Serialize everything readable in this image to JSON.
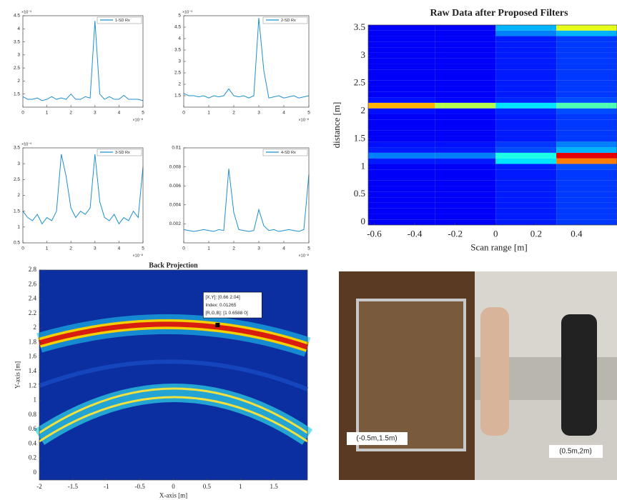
{
  "chart_data": [
    {
      "type": "line",
      "y_multiplier": "×10⁻⁶",
      "x_multiplier": "×10⁻⁸",
      "x": [
        0,
        0.2,
        0.4,
        0.6,
        0.8,
        1,
        1.2,
        1.4,
        1.6,
        1.8,
        2,
        2.2,
        2.4,
        2.6,
        2.8,
        3,
        3.2,
        3.4,
        3.6,
        3.8,
        4,
        4.2,
        4.4,
        4.6,
        4.8,
        5
      ],
      "series": [
        {
          "name": "1-SD Rx",
          "color": "#1f8fd0",
          "values": [
            1.4,
            1.3,
            1.3,
            1.35,
            1.25,
            1.3,
            1.4,
            1.3,
            1.35,
            1.3,
            1.5,
            1.3,
            1.3,
            1.4,
            1.35,
            4.3,
            1.5,
            1.3,
            1.4,
            1.3,
            1.3,
            1.45,
            1.3,
            1.3,
            1.3,
            1.25
          ]
        }
      ],
      "xlim": [
        0,
        5
      ],
      "xticks": [
        0,
        1,
        2,
        3,
        4,
        5
      ],
      "ylim": [
        1,
        4.5
      ],
      "yticks": [
        1.5,
        2,
        2.5,
        3,
        3.5,
        4,
        4.5
      ]
    },
    {
      "type": "line",
      "y_multiplier": "×10⁻⁶",
      "x_multiplier": "×10⁻⁸",
      "x": [
        0,
        0.2,
        0.4,
        0.6,
        0.8,
        1,
        1.2,
        1.4,
        1.6,
        1.8,
        2,
        2.2,
        2.4,
        2.6,
        2.8,
        3,
        3.2,
        3.4,
        3.6,
        3.8,
        4,
        4.2,
        4.4,
        4.6,
        4.8,
        5
      ],
      "series": [
        {
          "name": "2-SD Rx",
          "color": "#1f8fd0",
          "values": [
            1.6,
            1.5,
            1.5,
            1.45,
            1.5,
            1.4,
            1.5,
            1.45,
            1.5,
            1.8,
            1.5,
            1.45,
            1.5,
            1.4,
            1.5,
            4.9,
            2.6,
            1.4,
            1.45,
            1.5,
            1.4,
            1.45,
            1.5,
            1.4,
            1.45,
            1.5
          ]
        }
      ],
      "xlim": [
        0,
        5
      ],
      "xticks": [
        0,
        1,
        2,
        3,
        4,
        5
      ],
      "ylim": [
        1,
        5
      ],
      "yticks": [
        1.5,
        2,
        2.5,
        3,
        3.5,
        4,
        4.5,
        5
      ]
    },
    {
      "type": "line",
      "y_multiplier": "×10⁻⁶",
      "x_multiplier": "×10⁻⁸",
      "x": [
        0,
        0.2,
        0.4,
        0.6,
        0.8,
        1,
        1.2,
        1.4,
        1.6,
        1.8,
        2,
        2.2,
        2.4,
        2.6,
        2.8,
        3,
        3.2,
        3.4,
        3.6,
        3.8,
        4,
        4.2,
        4.4,
        4.6,
        4.8,
        5
      ],
      "series": [
        {
          "name": "3-SD Rx",
          "color": "#1f8fd0",
          "values": [
            1.5,
            1.3,
            1.2,
            1.4,
            1.1,
            1.3,
            1.2,
            1.5,
            3.3,
            2.6,
            1.6,
            1.3,
            1.5,
            1.4,
            1.6,
            3.3,
            1.8,
            1.3,
            1.2,
            1.4,
            1.1,
            1.3,
            1.2,
            1.5,
            1.3,
            2.9
          ]
        }
      ],
      "xlim": [
        0,
        5
      ],
      "xticks": [
        0,
        1,
        2,
        3,
        4,
        5
      ],
      "ylim": [
        0.5,
        3.5
      ],
      "yticks": [
        0.5,
        1,
        1.5,
        2,
        2.5,
        3,
        3.5
      ]
    },
    {
      "type": "line",
      "x_multiplier": "×10⁻⁸",
      "x": [
        0,
        0.2,
        0.4,
        0.6,
        0.8,
        1,
        1.2,
        1.4,
        1.6,
        1.8,
        2,
        2.2,
        2.4,
        2.6,
        2.8,
        3,
        3.2,
        3.4,
        3.6,
        3.8,
        4,
        4.2,
        4.4,
        4.6,
        4.8,
        5
      ],
      "series": [
        {
          "name": "4-SD Rx",
          "color": "#1f8fd0",
          "values": [
            0.0014,
            0.0013,
            0.0012,
            0.0013,
            0.0014,
            0.0013,
            0.0012,
            0.0014,
            0.0013,
            0.0078,
            0.0032,
            0.0014,
            0.0013,
            0.0012,
            0.0013,
            0.0035,
            0.0018,
            0.0013,
            0.0014,
            0.0012,
            0.0013,
            0.0014,
            0.0013,
            0.0012,
            0.0014,
            0.0072
          ]
        }
      ],
      "xlim": [
        0,
        5
      ],
      "xticks": [
        0,
        1,
        2,
        3,
        4,
        5
      ],
      "ylim": [
        0,
        0.01
      ],
      "yticks": [
        0.002,
        0.004,
        0.006,
        0.008,
        0.01
      ]
    },
    {
      "type": "heatmap",
      "title": "Raw Data after Proposed Filters",
      "x_label": "Scan range [m]",
      "y_label": "distance [m]",
      "xbins": [
        -0.63,
        -0.3,
        0,
        0.3,
        0.6
      ],
      "ybins": [
        -0.05,
        0.05,
        0.15,
        0.25,
        0.35,
        0.45,
        0.55,
        0.65,
        0.75,
        0.85,
        0.95,
        1.05,
        1.15,
        1.25,
        1.35,
        1.45,
        1.55,
        1.65,
        1.75,
        1.85,
        1.95,
        2.05,
        2.15,
        2.25,
        2.35,
        2.45,
        2.55,
        2.65,
        2.75,
        2.85,
        2.95,
        3.05,
        3.15,
        3.25,
        3.35,
        3.45,
        3.55
      ],
      "values": [
        [
          0.12,
          0.12,
          0.15,
          0.18
        ],
        [
          0.12,
          0.12,
          0.15,
          0.18
        ],
        [
          0.12,
          0.12,
          0.15,
          0.18
        ],
        [
          0.12,
          0.12,
          0.15,
          0.18
        ],
        [
          0.12,
          0.12,
          0.15,
          0.18
        ],
        [
          0.12,
          0.12,
          0.15,
          0.18
        ],
        [
          0.12,
          0.12,
          0.15,
          0.18
        ],
        [
          0.12,
          0.12,
          0.15,
          0.18
        ],
        [
          0.12,
          0.12,
          0.15,
          0.18
        ],
        [
          0.12,
          0.12,
          0.15,
          0.18
        ],
        [
          0.12,
          0.12,
          0.15,
          0.2
        ],
        [
          0.15,
          0.15,
          0.35,
          0.75
        ],
        [
          0.25,
          0.25,
          0.4,
          0.9
        ],
        [
          0.15,
          0.15,
          0.2,
          0.3
        ],
        [
          0.14,
          0.14,
          0.18,
          0.25
        ],
        [
          0.12,
          0.12,
          0.15,
          0.18
        ],
        [
          0.12,
          0.12,
          0.15,
          0.18
        ],
        [
          0.12,
          0.12,
          0.15,
          0.18
        ],
        [
          0.12,
          0.12,
          0.15,
          0.18
        ],
        [
          0.12,
          0.12,
          0.15,
          0.18
        ],
        [
          0.14,
          0.13,
          0.16,
          0.2
        ],
        [
          0.7,
          0.55,
          0.35,
          0.45
        ],
        [
          0.14,
          0.13,
          0.16,
          0.2
        ],
        [
          0.12,
          0.12,
          0.15,
          0.18
        ],
        [
          0.12,
          0.12,
          0.15,
          0.18
        ],
        [
          0.12,
          0.12,
          0.15,
          0.18
        ],
        [
          0.12,
          0.12,
          0.15,
          0.18
        ],
        [
          0.12,
          0.12,
          0.15,
          0.18
        ],
        [
          0.12,
          0.12,
          0.15,
          0.18
        ],
        [
          0.12,
          0.12,
          0.15,
          0.18
        ],
        [
          0.12,
          0.12,
          0.15,
          0.18
        ],
        [
          0.12,
          0.12,
          0.15,
          0.18
        ],
        [
          0.12,
          0.12,
          0.15,
          0.18
        ],
        [
          0.12,
          0.12,
          0.15,
          0.18
        ],
        [
          0.12,
          0.12,
          0.25,
          0.3
        ],
        [
          0.12,
          0.12,
          0.3,
          0.6
        ]
      ],
      "xlim": [
        -0.63,
        0.6
      ],
      "xticks": [
        -0.6,
        -0.4,
        -0.2,
        0,
        0.2,
        0.4
      ],
      "ylim": [
        -0.05,
        3.55
      ],
      "yticks": [
        0,
        0.5,
        1,
        1.5,
        2,
        2.5,
        3,
        3.5
      ]
    },
    {
      "type": "image",
      "title": "Back Projection",
      "x_label": "X-axis [m]",
      "y_label": "Y-axis [m]",
      "marker": {
        "x": 0.66,
        "y": 2.04
      },
      "datatip": [
        "[X,Y]: [0.66 2.04]",
        "Index: 0.01265",
        "[R,G,B]: [1 0.6588 0]"
      ],
      "xlim": [
        -2,
        2
      ],
      "xticks": [
        -2,
        -1.5,
        -1,
        -0.5,
        0,
        0.5,
        1,
        1.5
      ],
      "ylim": [
        -0.1,
        2.8
      ],
      "yticks": [
        0,
        0.2,
        0.4,
        0.6,
        0.8,
        1,
        1.2,
        1.4,
        1.6,
        1.8,
        2,
        2.2,
        2.4,
        2.6,
        2.8
      ]
    }
  ],
  "photo": {
    "labels": [
      "(-0.5m,1.5m)",
      "(0.5m,2m)"
    ]
  }
}
